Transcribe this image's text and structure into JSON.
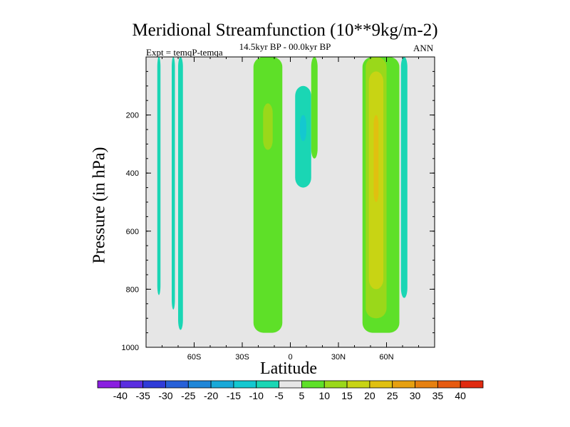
{
  "chart_data": {
    "type": "contour",
    "title": "Meridional Streamfunction (10**9kg/m-2)",
    "subtitle": "14.5kyr BP - 00.0kyr BP",
    "left_label": "Expt = temqP-temqa",
    "right_label": "ANN",
    "xlabel": "Latitude",
    "ylabel": "Pressure (in hPa)",
    "xlim": [
      -90,
      90
    ],
    "ylim": [
      1000,
      0
    ],
    "x_ticks": [
      {
        "value": -60,
        "label": "60S"
      },
      {
        "value": -30,
        "label": "30S"
      },
      {
        "value": 0,
        "label": "0"
      },
      {
        "value": 30,
        "label": "30N"
      },
      {
        "value": 60,
        "label": "60N"
      }
    ],
    "y_ticks": [
      {
        "value": 200,
        "label": "200"
      },
      {
        "value": 400,
        "label": "400"
      },
      {
        "value": 600,
        "label": "600"
      },
      {
        "value": 800,
        "label": "800"
      },
      {
        "value": 1000,
        "label": "1000"
      }
    ],
    "background_value_range": "-5 to 5",
    "colorbar": {
      "labels": [
        "-40",
        "-35",
        "-30",
        "-25",
        "-20",
        "-15",
        "-10",
        "-5",
        "5",
        "10",
        "15",
        "20",
        "25",
        "30",
        "35",
        "40"
      ],
      "colors": [
        "#8a1fe0",
        "#5a2ee0",
        "#2f3bd8",
        "#2760d8",
        "#1f86d8",
        "#19a9d8",
        "#14c8d0",
        "#1ad6b4",
        "#e6e6e6",
        "#5ee028",
        "#9ad81a",
        "#c8d414",
        "#e0c010",
        "#e6a010",
        "#e68010",
        "#e65a10",
        "#e02a10"
      ]
    },
    "regions": [
      {
        "id": "sh-polar-a",
        "value": -7,
        "lat": [
          -83,
          -81
        ],
        "p": [
          0,
          820
        ]
      },
      {
        "id": "sh-polar-b",
        "value": -7,
        "lat": [
          -74,
          -72
        ],
        "p": [
          0,
          870
        ]
      },
      {
        "id": "sh-polar-c",
        "value": -7,
        "lat": [
          -70,
          -67
        ],
        "p": [
          0,
          940
        ]
      },
      {
        "id": "sh-tropics",
        "value": 7,
        "lat": [
          -23,
          -5
        ],
        "p": [
          0,
          950
        ]
      },
      {
        "id": "sh-tropics-core",
        "value": 12,
        "lat": [
          -17,
          -11
        ],
        "p": [
          160,
          320
        ]
      },
      {
        "id": "nh-tropics-neg",
        "value": -7,
        "lat": [
          3,
          13
        ],
        "p": [
          100,
          450
        ]
      },
      {
        "id": "nh-tropics-core",
        "value": -12,
        "lat": [
          6,
          10
        ],
        "p": [
          200,
          290
        ]
      },
      {
        "id": "nh-subtrop-pos",
        "value": 7,
        "lat": [
          13,
          17
        ],
        "p": [
          0,
          350
        ]
      },
      {
        "id": "nh-midlat-pos",
        "value": 7,
        "lat": [
          45,
          68
        ],
        "p": [
          0,
          950
        ]
      },
      {
        "id": "nh-midlat-mid",
        "value": 12,
        "lat": [
          47,
          60
        ],
        "p": [
          0,
          900
        ]
      },
      {
        "id": "nh-midlat-core",
        "value": 17,
        "lat": [
          49,
          58
        ],
        "p": [
          50,
          800
        ]
      },
      {
        "id": "nh-jet-core",
        "value": 22,
        "lat": [
          52,
          55
        ],
        "p": [
          200,
          500
        ]
      },
      {
        "id": "nh-polar-neg",
        "value": -7,
        "lat": [
          69,
          73
        ],
        "p": [
          0,
          830
        ]
      }
    ]
  }
}
